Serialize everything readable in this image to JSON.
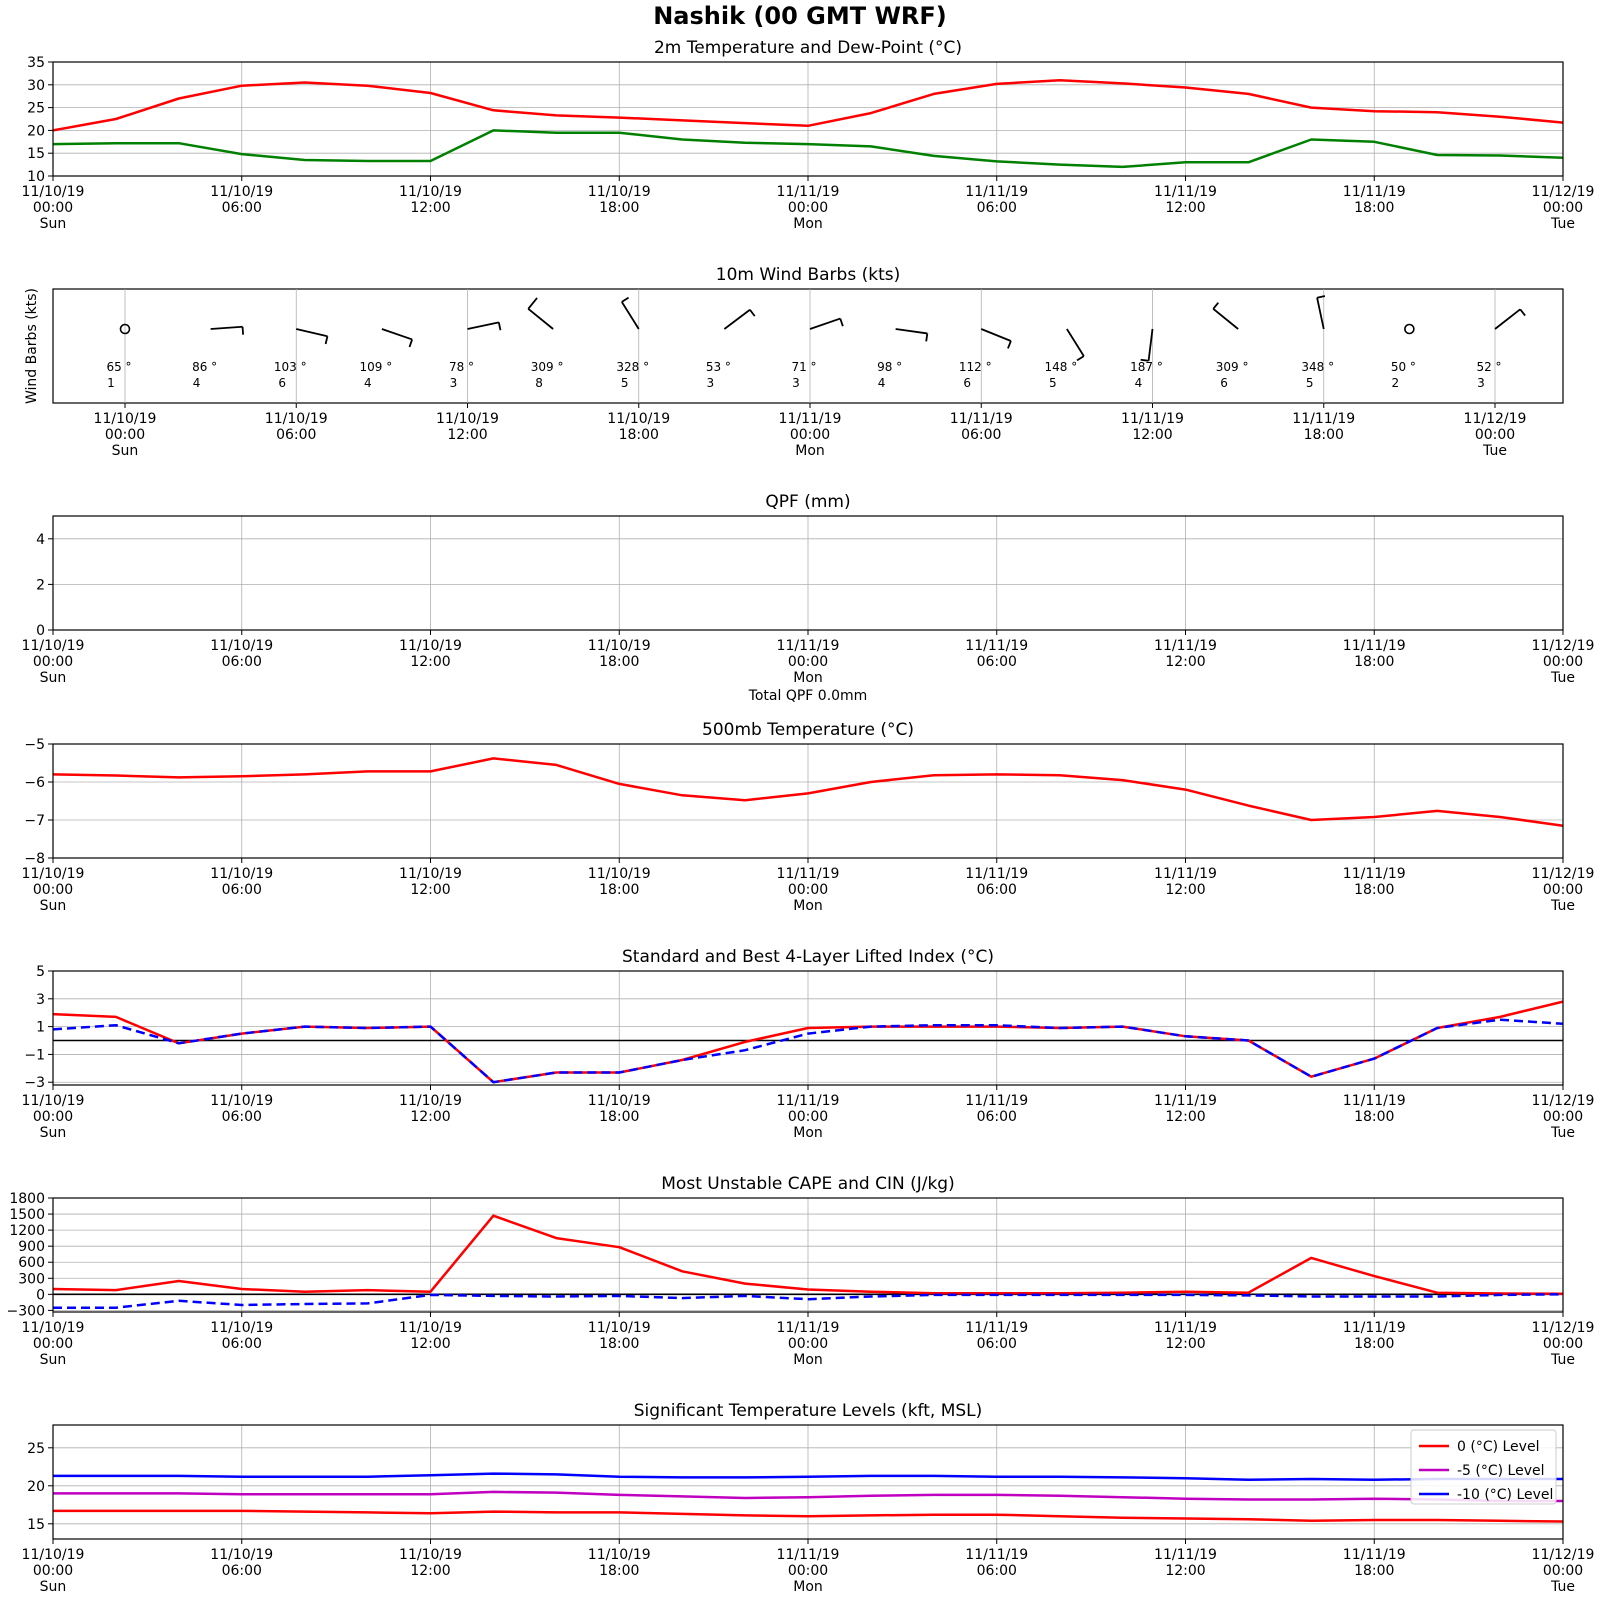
{
  "title": "Nashik (00 GMT WRF)",
  "time_ticks": [
    [
      "11/10/19",
      "00:00",
      "Sun"
    ],
    [
      "11/10/19",
      "06:00",
      ""
    ],
    [
      "11/10/19",
      "12:00",
      ""
    ],
    [
      "11/10/19",
      "18:00",
      ""
    ],
    [
      "11/11/19",
      "00:00",
      "Mon"
    ],
    [
      "11/11/19",
      "06:00",
      ""
    ],
    [
      "11/11/19",
      "12:00",
      ""
    ],
    [
      "11/11/19",
      "18:00",
      ""
    ],
    [
      "11/12/19",
      "00:00",
      "Tue"
    ]
  ],
  "chart_data": [
    {
      "type": "line",
      "title": "2m Temperature and Dew-Point (°C)",
      "ylim": [
        10,
        35
      ],
      "yticks": [
        10,
        15,
        20,
        25,
        30,
        35
      ],
      "x_hours": [
        0,
        2,
        4,
        6,
        8,
        10,
        12,
        14,
        16,
        18,
        20,
        22,
        24,
        26,
        28,
        30,
        32,
        34,
        36,
        38,
        40,
        42,
        44,
        46,
        48
      ],
      "series": [
        {
          "color": "#ff0000",
          "values": [
            20.0,
            22.5,
            27.0,
            29.8,
            30.5,
            29.8,
            28.2,
            24.4,
            23.3,
            22.8,
            22.2,
            21.6,
            21.0,
            23.8,
            28.0,
            30.2,
            31.0,
            30.3,
            29.4,
            28.0,
            25.0,
            24.2,
            24.0,
            23.0,
            21.7
          ]
        },
        {
          "color": "#008000",
          "values": [
            17.0,
            17.2,
            17.2,
            14.8,
            13.5,
            13.3,
            13.3,
            20.0,
            19.5,
            19.5,
            18.0,
            17.3,
            17.0,
            16.5,
            14.4,
            13.2,
            12.5,
            12.0,
            13.0,
            13.0,
            18.0,
            17.5,
            14.6,
            14.5,
            14.0
          ]
        }
      ]
    },
    {
      "type": "barbs",
      "title": "10m Wind Barbs (kts)",
      "ylabel": "Wind Barbs (kts)",
      "x_hours": [
        0,
        3,
        6,
        9,
        12,
        15,
        18,
        21,
        24,
        27,
        30,
        33,
        36,
        39,
        42,
        45,
        48
      ],
      "directions": [
        65,
        86,
        103,
        109,
        78,
        309,
        328,
        53,
        71,
        98,
        112,
        148,
        187,
        309,
        348,
        50,
        52
      ],
      "speeds": [
        1,
        4,
        6,
        4,
        3,
        8,
        5,
        3,
        3,
        4,
        6,
        5,
        4,
        6,
        5,
        2,
        3
      ]
    },
    {
      "type": "bar",
      "title": "QPF (mm)",
      "ylim": [
        0,
        5
      ],
      "yticks": [
        0,
        2,
        4
      ],
      "total_label": "Total QPF 0.0mm",
      "values": []
    },
    {
      "type": "line",
      "title": "500mb Temperature (°C)",
      "ylim": [
        -8,
        -5
      ],
      "yticks": [
        -8,
        -7,
        -6,
        -5
      ],
      "x_hours": [
        0,
        2,
        4,
        6,
        8,
        10,
        12,
        14,
        16,
        18,
        20,
        22,
        24,
        26,
        28,
        30,
        32,
        34,
        36,
        38,
        40,
        42,
        44,
        46,
        48
      ],
      "series": [
        {
          "color": "#ff0000",
          "values": [
            -5.8,
            -5.83,
            -5.88,
            -5.85,
            -5.8,
            -5.72,
            -5.72,
            -5.38,
            -5.55,
            -6.05,
            -6.35,
            -6.48,
            -6.3,
            -6.0,
            -5.82,
            -5.8,
            -5.82,
            -5.95,
            -6.2,
            -6.62,
            -7.0,
            -6.92,
            -6.76,
            -6.92,
            -7.15
          ]
        }
      ]
    },
    {
      "type": "line",
      "title": "Standard and Best 4-Layer Lifted Index (°C)",
      "ylim": [
        -3.2,
        5
      ],
      "yticks": [
        -3,
        -1,
        1,
        3,
        5
      ],
      "zero_line": 0,
      "x_hours": [
        0,
        2,
        4,
        6,
        8,
        10,
        12,
        14,
        16,
        18,
        20,
        22,
        24,
        26,
        28,
        30,
        32,
        34,
        36,
        38,
        40,
        42,
        44,
        46,
        48
      ],
      "series": [
        {
          "color": "#ff0000",
          "values": [
            1.9,
            1.7,
            -0.2,
            0.5,
            1.0,
            0.9,
            1.0,
            -3.0,
            -2.3,
            -2.3,
            -1.4,
            -0.1,
            0.9,
            1.0,
            1.0,
            1.0,
            0.9,
            1.0,
            0.3,
            0.0,
            -2.6,
            -1.3,
            0.9,
            1.7,
            2.8
          ]
        },
        {
          "color": "#0000ff",
          "dashed": true,
          "values": [
            0.8,
            1.1,
            -0.2,
            0.5,
            1.0,
            0.9,
            1.0,
            -3.0,
            -2.3,
            -2.3,
            -1.4,
            -0.7,
            0.5,
            1.0,
            1.1,
            1.1,
            0.9,
            1.0,
            0.3,
            0.0,
            -2.6,
            -1.3,
            0.9,
            1.5,
            1.2
          ]
        }
      ]
    },
    {
      "type": "line",
      "title": "Most Unstable CAPE and CIN (J/kg)",
      "ylim": [
        -330,
        1800
      ],
      "yticks": [
        -300,
        0,
        300,
        600,
        900,
        1200,
        1500,
        1800
      ],
      "zero_line": 0,
      "x_hours": [
        0,
        2,
        4,
        6,
        8,
        10,
        12,
        14,
        16,
        18,
        20,
        22,
        24,
        26,
        28,
        30,
        32,
        34,
        36,
        38,
        40,
        42,
        44,
        46,
        48
      ],
      "series": [
        {
          "color": "#ff0000",
          "values": [
            100,
            80,
            250,
            100,
            50,
            80,
            50,
            1470,
            1050,
            880,
            430,
            200,
            90,
            50,
            20,
            20,
            20,
            30,
            50,
            30,
            680,
            340,
            30,
            15,
            10
          ]
        },
        {
          "color": "#0000ff",
          "dashed": true,
          "values": [
            -250,
            -250,
            -120,
            -200,
            -180,
            -170,
            -10,
            -30,
            -40,
            -30,
            -70,
            -30,
            -90,
            -40,
            -10,
            -10,
            -10,
            -10,
            -10,
            -20,
            -40,
            -40,
            -40,
            -10,
            0
          ]
        }
      ]
    },
    {
      "type": "line",
      "title": "Significant Temperature Levels (kft, MSL)",
      "ylim": [
        13,
        28
      ],
      "yticks": [
        15,
        20,
        25
      ],
      "legend_position": "right",
      "x_hours": [
        0,
        2,
        4,
        6,
        8,
        10,
        12,
        14,
        16,
        18,
        20,
        22,
        24,
        26,
        28,
        30,
        32,
        34,
        36,
        38,
        40,
        42,
        44,
        46,
        48
      ],
      "series": [
        {
          "name": "0 (°C) Level",
          "color": "#ff0000",
          "values": [
            16.7,
            16.7,
            16.7,
            16.7,
            16.6,
            16.5,
            16.4,
            16.6,
            16.5,
            16.5,
            16.3,
            16.1,
            16.0,
            16.1,
            16.2,
            16.2,
            16.0,
            15.8,
            15.7,
            15.6,
            15.4,
            15.5,
            15.5,
            15.4,
            15.3
          ]
        },
        {
          "name": "-5 (°C) Level",
          "color": "#c000c0",
          "values": [
            19.0,
            19.0,
            19.0,
            18.9,
            18.9,
            18.9,
            18.9,
            19.2,
            19.1,
            18.8,
            18.6,
            18.4,
            18.5,
            18.7,
            18.8,
            18.8,
            18.7,
            18.5,
            18.3,
            18.2,
            18.2,
            18.3,
            18.2,
            18.0,
            18.0
          ]
        },
        {
          "name": "-10 (°C) Level",
          "color": "#0000ff",
          "values": [
            21.3,
            21.3,
            21.3,
            21.2,
            21.2,
            21.2,
            21.4,
            21.6,
            21.5,
            21.2,
            21.1,
            21.1,
            21.2,
            21.3,
            21.3,
            21.2,
            21.2,
            21.1,
            21.0,
            20.8,
            20.9,
            20.8,
            20.9,
            20.9,
            20.9
          ]
        }
      ]
    }
  ]
}
